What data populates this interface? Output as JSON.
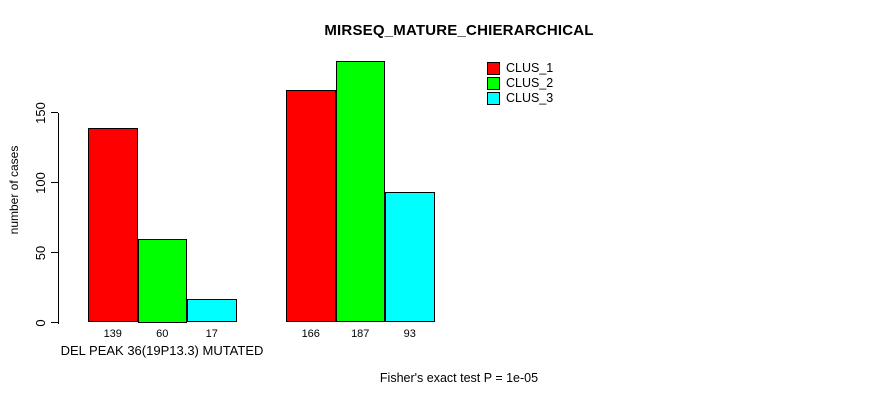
{
  "chart_data": {
    "type": "bar",
    "title": "MIRSEQ_MATURE_CHIERARCHICAL",
    "ylabel": "number of cases",
    "xlabel": "DEL PEAK 36(19P13.3) MUTATED",
    "footer": "Fisher's exact test P = 1e-05",
    "categories": [
      "DEL PEAK 36(19P13.3) MUTATED",
      ""
    ],
    "series": [
      {
        "name": "CLUS_1",
        "color": "#ff0000",
        "values": [
          139,
          166
        ]
      },
      {
        "name": "CLUS_2",
        "color": "#00ff00",
        "values": [
          60,
          187
        ]
      },
      {
        "name": "CLUS_3",
        "color": "#00ffff",
        "values": [
          17,
          93
        ]
      }
    ],
    "bar_value_labels": [
      [
        139,
        60,
        17
      ],
      [
        166,
        187,
        93
      ]
    ],
    "yticks": [
      0,
      50,
      100,
      150
    ],
    "ylim": [
      0,
      150
    ],
    "grid": false,
    "legend_position": "top-right"
  }
}
